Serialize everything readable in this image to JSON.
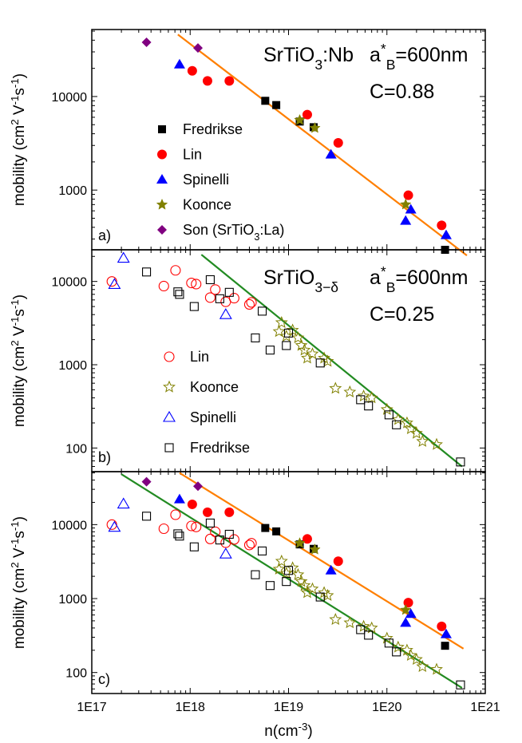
{
  "chart_data": [
    {
      "type": "scatter",
      "panel_label": "a)",
      "title_parts": {
        "main": "SrTiO",
        "sub": "3",
        "tail": ":Nb"
      },
      "annotations": {
        "ab_base": "a",
        "ab_sup": "*",
        "ab_sub": "B",
        "ab_value": "=600nm",
        "c_value": "C=0.88"
      },
      "xlim": [
        1e+17,
        1e+21
      ],
      "ylim": [
        230,
        52000
      ],
      "scale": "log-log",
      "yticks": [
        {
          "v": 1000,
          "label": "1000"
        },
        {
          "v": 10000,
          "label": "10000"
        }
      ],
      "ylabel": {
        "pre": "mobility (cm",
        "sup1": "2",
        "mid1": " V",
        "sup2": "-1",
        "mid2": "s",
        "sup3": "-1",
        "post": ")"
      },
      "fit_lines": [
        {
          "color": "#ff7f00",
          "x": [
            7.5e+17,
            6.5e+20
          ],
          "y": [
            46000,
            200
          ]
        }
      ],
      "series": [
        {
          "name": "Fredrikse",
          "marker": "square",
          "color": "#000000",
          "filled": true,
          "x": [
            5.8e+18,
            7.5e+18,
            1.3e+19,
            1.8e+19,
            3.9e+20
          ],
          "y": [
            9000,
            8100,
            5400,
            4700,
            230
          ]
        },
        {
          "name": "Lin",
          "marker": "circle",
          "color": "#ff0000",
          "filled": true,
          "x": [
            1.05e+18,
            1.5e+18,
            2.5e+18,
            1.55e+19,
            3.2e+19,
            1.65e+20,
            3.6e+20
          ],
          "y": [
            18800,
            14700,
            14700,
            6400,
            3200,
            880,
            420
          ]
        },
        {
          "name": "Spinelli",
          "marker": "triangle",
          "color": "#0000ff",
          "filled": true,
          "x": [
            7.8e+17,
            2.7e+19,
            1.55e+20,
            1.75e+20,
            4e+20
          ],
          "y": [
            22000,
            2400,
            470,
            620,
            330
          ]
        },
        {
          "name": "Koonce",
          "marker": "star",
          "color": "#808000",
          "filled": true,
          "x": [
            1.3e+19,
            1.85e+19,
            1.55e+20
          ],
          "y": [
            5600,
            4600,
            700
          ]
        },
        {
          "name": "Son (SrTiO3:La)",
          "legend_parts": {
            "pre": "Son (SrTiO",
            "sub": "3",
            "post": ":La)"
          },
          "marker": "diamond",
          "color": "#800080",
          "filled": true,
          "x": [
            3.6e+17,
            1.2e+18
          ],
          "y": [
            38000,
            33000
          ]
        }
      ]
    },
    {
      "type": "scatter",
      "panel_label": "b)",
      "title_parts": {
        "main": "SrTiO",
        "sub": "3−δ",
        "tail": ""
      },
      "annotations": {
        "ab_base": "a",
        "ab_sup": "*",
        "ab_sub": "B",
        "ab_value": "=600nm",
        "c_value": "C=0.25"
      },
      "xlim": [
        1e+17,
        1e+21
      ],
      "ylim": [
        52,
        24000
      ],
      "scale": "log-log",
      "yticks": [
        {
          "v": 100,
          "label": "100"
        },
        {
          "v": 1000,
          "label": "1000"
        },
        {
          "v": 10000,
          "label": "10000"
        }
      ],
      "ylabel": {
        "pre": "mobility (cm",
        "sup1": "2",
        "mid1": " V",
        "sup2": "-1",
        "mid2": "s",
        "sup3": "-1",
        "post": ")"
      },
      "fit_lines": [
        {
          "color": "#228b22",
          "x": [
            1.3e+18,
            5.8e+20
          ],
          "y": [
            21000,
            60
          ]
        }
      ],
      "series": [
        {
          "name": "Lin",
          "marker": "circle",
          "color": "#ff0000",
          "filled": false,
          "x": [
            1.6e+17,
            5.4e+17,
            7.1e+17,
            1.03e+18,
            1.15e+18,
            1.6e+18,
            1.8e+18,
            2.3e+18,
            2.8e+18,
            4e+18,
            4.2e+18
          ],
          "y": [
            10000,
            8800,
            13600,
            9600,
            9300,
            6400,
            8000,
            5700,
            6300,
            5300,
            5600
          ]
        },
        {
          "name": "Koonce",
          "marker": "star",
          "color": "#808000",
          "filled": false,
          "x": [
            8e+18,
            8.5e+18,
            9.5e+18,
            1.1e+19,
            1.25e+19,
            1.35e+19,
            1.45e+19,
            1.55e+19,
            1.75e+19,
            2.3e+19,
            2.5e+19,
            3e+19,
            4.2e+19,
            5.8e+19,
            7e+19,
            1e+20,
            1.3e+20,
            1.6e+20,
            1.75e+20,
            2e+20,
            2.3e+20,
            3.2e+20
          ],
          "y": [
            2500,
            3200,
            2200,
            2600,
            2100,
            1700,
            1500,
            1200,
            1350,
            1200,
            1100,
            520,
            470,
            420,
            400,
            290,
            220,
            200,
            170,
            150,
            120,
            110
          ]
        },
        {
          "name": "Spinelli",
          "marker": "triangle",
          "color": "#0000ff",
          "filled": false,
          "x": [
            1.7e+17,
            2.1e+17,
            2.3e+18
          ],
          "y": [
            9200,
            19000,
            4000
          ]
        },
        {
          "name": "Fredrikse",
          "marker": "square",
          "color": "#000000",
          "filled": false,
          "x": [
            3.6e+17,
            7.5e+17,
            7.8e+17,
            1.1e+18,
            1.6e+18,
            2e+18,
            2.5e+18,
            4.6e+18,
            5.4e+18,
            6.5e+18,
            9.5e+18,
            1e+19,
            2.1e+19,
            5.4e+19,
            6.5e+19,
            1.05e+20,
            1.25e+20,
            5.6e+20
          ],
          "y": [
            13000,
            7500,
            7000,
            5000,
            10500,
            6200,
            7400,
            2100,
            4400,
            1500,
            1700,
            2400,
            1050,
            380,
            320,
            250,
            190,
            68
          ]
        }
      ]
    },
    {
      "type": "scatter",
      "panel_label": "c)",
      "xlim": [
        1e+17,
        1e+21
      ],
      "ylim": [
        52,
        52000
      ],
      "scale": "log-log",
      "xticks": [
        {
          "v": 1e+17,
          "label": "1E17"
        },
        {
          "v": 1e+18,
          "label": "1E18"
        },
        {
          "v": 1e+19,
          "label": "1E19"
        },
        {
          "v": 1e+20,
          "label": "1E20"
        },
        {
          "v": 1e+21,
          "label": "1E21"
        }
      ],
      "yticks": [
        {
          "v": 100,
          "label": "100"
        },
        {
          "v": 1000,
          "label": "1000"
        },
        {
          "v": 10000,
          "label": "10000"
        }
      ],
      "xlabel": {
        "pre": "n(cm",
        "sup": "-3",
        "post": ")"
      },
      "ylabel": {
        "pre": "mobility (cm",
        "sup1": "2",
        "mid1": " V",
        "sup2": "-1",
        "mid2": "s",
        "sup3": "-1",
        "post": ")"
      },
      "fit_lines": [
        {
          "color": "#ff7f00",
          "x": [
            7.8e+17,
            6e+20
          ],
          "y": [
            50000,
            210
          ]
        },
        {
          "color": "#228b22",
          "x": [
            2e+17,
            5.8e+20
          ],
          "y": [
            48000,
            62
          ]
        }
      ],
      "series_from": "combined panels a and b"
    }
  ]
}
